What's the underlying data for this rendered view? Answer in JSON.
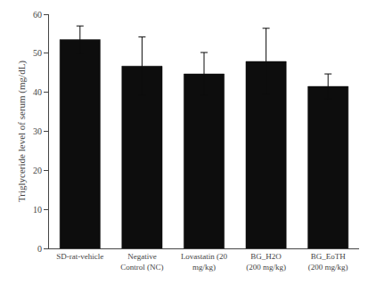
{
  "chart_data": {
    "type": "bar",
    "categories": [
      "SD-rat-vehicle",
      "Negative\nControl (NC)",
      "Lovastatin (20\nmg/kg)",
      "BG_H2O\n(200 mg/kg)",
      "BG_EoTH\n(200 mg/kg)"
    ],
    "values": [
      53.5,
      46.7,
      44.7,
      47.9,
      41.5
    ],
    "errors": [
      3.5,
      7.5,
      5.5,
      8.5,
      3.2
    ],
    "color": "#0d0d0d",
    "ylabel": "Triglyceride level of serum (mg/dL)",
    "ylim": [
      0,
      60
    ],
    "yticks": [
      0,
      10,
      20,
      30,
      40,
      50,
      60
    ],
    "grid": false
  }
}
